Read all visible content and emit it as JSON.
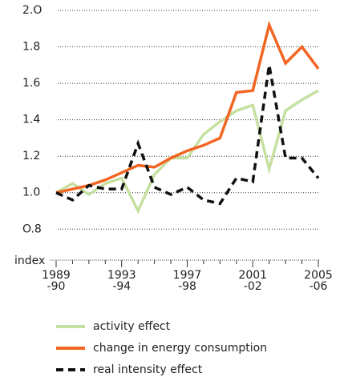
{
  "chart_data": {
    "type": "line",
    "ylabel": "index",
    "categories": [
      "1989\n-90",
      null,
      null,
      null,
      "1993\n-94",
      null,
      null,
      null,
      "1997\n-98",
      null,
      null,
      null,
      "2001\n-02",
      null,
      null,
      null,
      "2005\n-06"
    ],
    "series": [
      {
        "name": "activity effect",
        "color": "#c5e0a0",
        "style": "solid",
        "values": [
          1.0,
          1.05,
          0.99,
          1.05,
          1.08,
          0.9,
          1.1,
          1.19,
          1.19,
          1.32,
          1.39,
          1.45,
          1.48,
          1.13,
          1.45,
          1.51,
          1.56
        ]
      },
      {
        "name": "change in energy consumption",
        "color": "#f26522",
        "style": "solid",
        "values": [
          1.0,
          1.02,
          1.04,
          1.07,
          1.11,
          1.15,
          1.14,
          1.19,
          1.23,
          1.26,
          1.3,
          1.55,
          1.56,
          1.92,
          1.71,
          1.8,
          1.68
        ]
      },
      {
        "name": "real intensity effect",
        "color": "#111111",
        "style": "dashed",
        "values": [
          1.0,
          0.96,
          1.04,
          1.02,
          1.02,
          1.27,
          1.03,
          0.99,
          1.03,
          0.96,
          0.94,
          1.08,
          1.06,
          1.7,
          1.19,
          1.19,
          1.08
        ]
      }
    ],
    "ylim": [
      0.63,
      2.0
    ],
    "yticks": [
      {
        "value": 0.8,
        "label": "O.8"
      },
      {
        "value": 1.0,
        "label": "1.0"
      },
      {
        "value": 1.2,
        "label": "1.2"
      },
      {
        "value": 1.4,
        "label": "1.4"
      },
      {
        "value": 1.6,
        "label": "1.6"
      },
      {
        "value": 1.8,
        "label": "1.8"
      },
      {
        "value": 2.0,
        "label": "2.O"
      }
    ],
    "grid": true
  }
}
